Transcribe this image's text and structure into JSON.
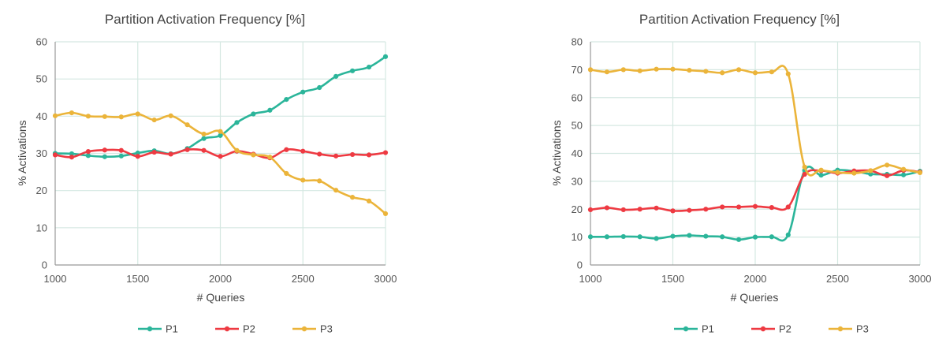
{
  "colors": {
    "P1": "#2bb59a",
    "P2": "#ee3a42",
    "P3": "#ebb43a",
    "grid": "#d5e8e2",
    "axis": "#999999"
  },
  "chart_data": [
    {
      "type": "line",
      "title": "Partition Activation Frequency [%]",
      "xlabel": "# Queries",
      "ylabel": "% Activations",
      "xlim": [
        1000,
        3000
      ],
      "ylim": [
        0,
        60
      ],
      "xticks": [
        1000,
        1500,
        2000,
        2500,
        3000
      ],
      "yticks": [
        0,
        10,
        20,
        30,
        40,
        50,
        60
      ],
      "grid": true,
      "legend_position": "bottom",
      "x": [
        1000,
        1100,
        1200,
        1300,
        1400,
        1500,
        1600,
        1700,
        1800,
        1900,
        2000,
        2100,
        2200,
        2300,
        2400,
        2500,
        2600,
        2700,
        2800,
        2900,
        3000
      ],
      "series": [
        {
          "name": "P1",
          "values": [
            30.0,
            29.9,
            29.4,
            29.1,
            29.3,
            30.1,
            30.7,
            29.9,
            31.3,
            34.0,
            34.8,
            38.3,
            40.6,
            41.6,
            44.5,
            46.5,
            47.7,
            50.7,
            52.2,
            53.2,
            56.0
          ]
        },
        {
          "name": "P2",
          "values": [
            29.6,
            29.0,
            30.5,
            30.9,
            30.8,
            29.2,
            30.3,
            29.8,
            31.0,
            30.8,
            29.2,
            30.6,
            29.8,
            28.8,
            31.0,
            30.6,
            29.8,
            29.3,
            29.7,
            29.6,
            30.2
          ]
        },
        {
          "name": "P3",
          "values": [
            40.1,
            40.9,
            40.0,
            39.9,
            39.8,
            40.6,
            39.0,
            40.1,
            37.7,
            35.2,
            35.9,
            30.8,
            29.6,
            29.0,
            24.6,
            22.8,
            22.6,
            20.1,
            18.2,
            17.2,
            13.8
          ]
        }
      ]
    },
    {
      "type": "line",
      "title": "Partition Activation Frequency [%]",
      "xlabel": "# Queries",
      "ylabel": "% Activations",
      "xlim": [
        1000,
        3000
      ],
      "ylim": [
        0,
        80
      ],
      "xticks": [
        1000,
        1500,
        2000,
        2500,
        3000
      ],
      "yticks": [
        0,
        10,
        20,
        30,
        40,
        50,
        60,
        70,
        80
      ],
      "grid": true,
      "legend_position": "bottom",
      "x": [
        1000,
        1100,
        1200,
        1300,
        1400,
        1500,
        1600,
        1700,
        1800,
        1900,
        2000,
        2100,
        2200,
        2300,
        2400,
        2500,
        2600,
        2700,
        2800,
        2900,
        3000
      ],
      "series": [
        {
          "name": "P1",
          "values": [
            10.1,
            10.1,
            10.2,
            10.1,
            9.5,
            10.3,
            10.6,
            10.3,
            10.1,
            9.1,
            10.0,
            10.1,
            10.8,
            33.9,
            32.2,
            34.0,
            33.6,
            32.6,
            32.5,
            32.3,
            33.6
          ]
        },
        {
          "name": "P2",
          "values": [
            19.8,
            20.5,
            19.8,
            20.0,
            20.4,
            19.4,
            19.6,
            20.0,
            20.8,
            20.8,
            21.0,
            20.6,
            20.8,
            32.5,
            33.8,
            32.9,
            33.7,
            33.8,
            32.0,
            33.9,
            33.3
          ]
        },
        {
          "name": "P3",
          "values": [
            70.0,
            69.2,
            70.0,
            69.6,
            70.2,
            70.2,
            69.8,
            69.4,
            68.9,
            70.0,
            68.9,
            69.2,
            68.5,
            35.1,
            34.0,
            33.2,
            32.9,
            33.8,
            35.8,
            34.3,
            33.1
          ]
        }
      ]
    }
  ]
}
